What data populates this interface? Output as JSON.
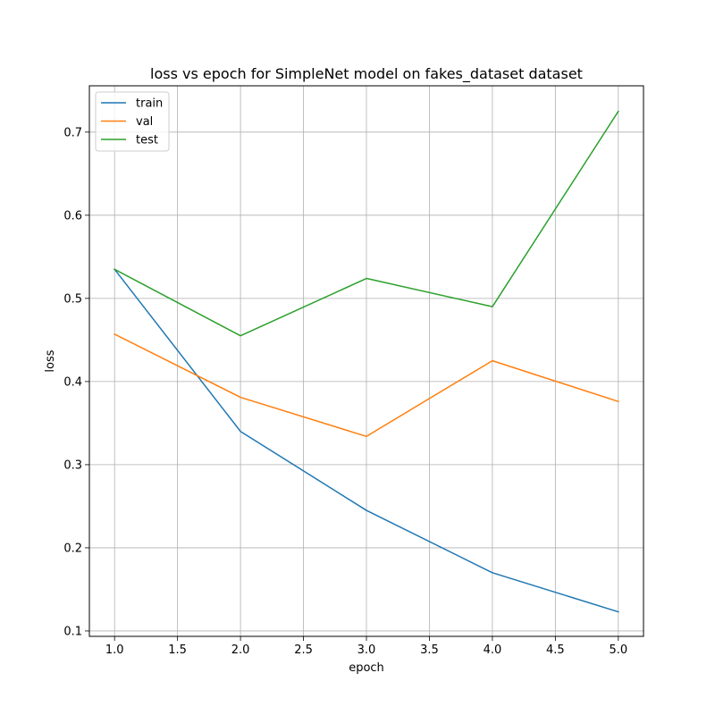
{
  "chart_data": {
    "type": "line",
    "title": "loss vs epoch for SimpleNet model on fakes_dataset dataset",
    "xlabel": "epoch",
    "ylabel": "loss",
    "x": [
      1.0,
      2.0,
      3.0,
      4.0,
      5.0
    ],
    "series": [
      {
        "name": "train",
        "color": "#1f77b4",
        "values": [
          0.535,
          0.34,
          0.245,
          0.17,
          0.123
        ]
      },
      {
        "name": "val",
        "color": "#ff7f0e",
        "values": [
          0.457,
          0.381,
          0.334,
          0.425,
          0.376
        ]
      },
      {
        "name": "test",
        "color": "#2ca02c",
        "values": [
          0.535,
          0.455,
          0.524,
          0.49,
          0.725
        ]
      }
    ],
    "xlim": [
      0.8,
      5.2
    ],
    "ylim": [
      0.0935,
      0.7557
    ],
    "xticks": [
      1.0,
      1.5,
      2.0,
      2.5,
      3.0,
      3.5,
      4.0,
      4.5,
      5.0
    ],
    "xtick_labels": [
      "1.0",
      "1.5",
      "2.0",
      "2.5",
      "3.0",
      "3.5",
      "4.0",
      "4.5",
      "5.0"
    ],
    "yticks": [
      0.1,
      0.2,
      0.3,
      0.4,
      0.5,
      0.6,
      0.7
    ],
    "ytick_labels": [
      "0.1",
      "0.2",
      "0.3",
      "0.4",
      "0.5",
      "0.6",
      "0.7"
    ],
    "grid": true,
    "legend_position": "top-left"
  }
}
